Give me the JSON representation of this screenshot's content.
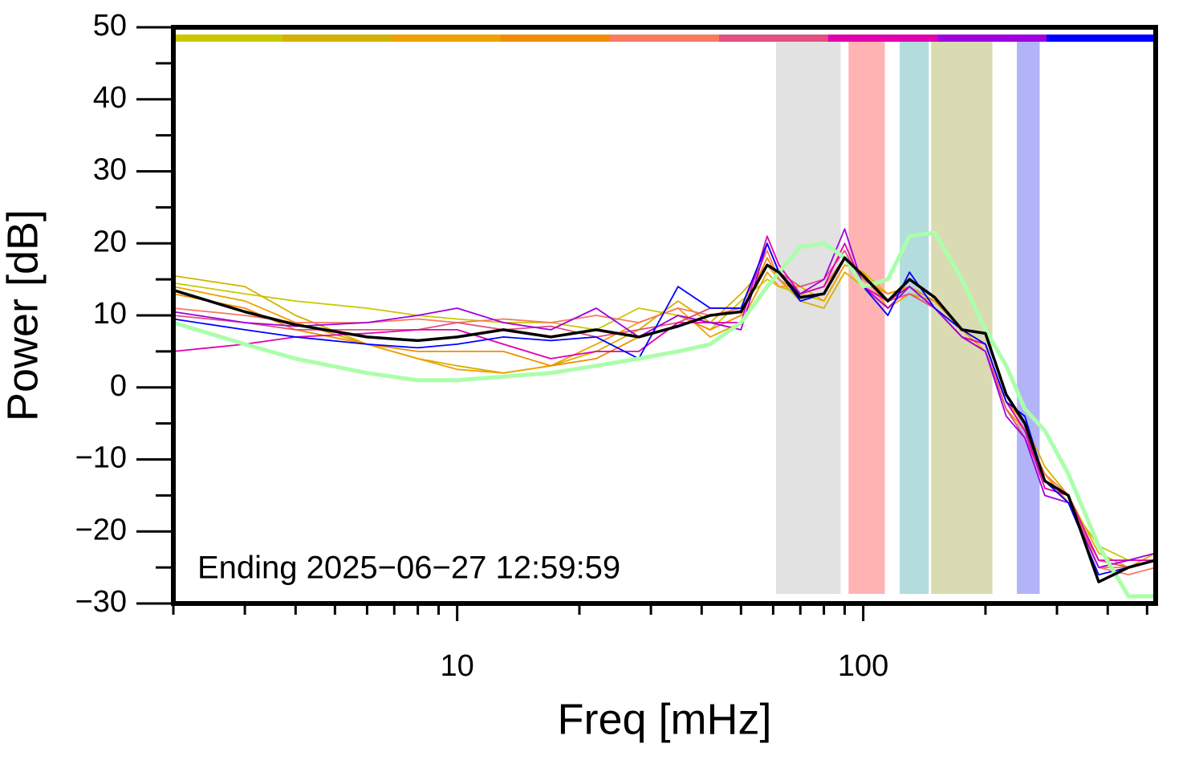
{
  "chart_data": {
    "type": "line",
    "xlabel": "Freq [mHz]",
    "ylabel": "Power [dB]",
    "annotation": "Ending 2025−06−27 12:59:59",
    "xscale": "log",
    "xlim": [
      2,
      525
    ],
    "ylim": [
      -30,
      50
    ],
    "xticks": [
      10,
      100
    ],
    "xminorticks": [
      2,
      3,
      4,
      5,
      6,
      7,
      8,
      9,
      20,
      30,
      40,
      50,
      60,
      70,
      80,
      90,
      200,
      300,
      400,
      500
    ],
    "yticks": [
      {
        "value": -30,
        "label": "−30"
      },
      {
        "value": -20,
        "label": "−20"
      },
      {
        "value": -10,
        "label": "−10"
      },
      0,
      10,
      20,
      30,
      40,
      50
    ],
    "yminorticks": [
      -25,
      -15,
      -5,
      5,
      15,
      25,
      35,
      45
    ],
    "bands": [
      {
        "x": [
          61,
          88
        ],
        "color": "#e2e2e2"
      },
      {
        "x": [
          92,
          113
        ],
        "color": "#ffb3b3"
      },
      {
        "x": [
          123,
          145
        ],
        "color": "#b3dcdc"
      },
      {
        "x": [
          147,
          208
        ],
        "color": "#dadab3"
      },
      {
        "x": [
          239,
          272
        ],
        "color": "#b3b3f8"
      }
    ],
    "x": [
      2,
      3,
      4,
      6,
      8,
      10,
      13,
      17,
      22,
      28,
      35,
      42,
      50,
      58,
      62,
      70,
      80,
      90,
      100,
      115,
      130,
      150,
      175,
      200,
      225,
      250,
      280,
      320,
      380,
      450,
      525
    ],
    "series": [
      {
        "color": "#c8c800",
        "values": [
          14.5,
          13,
          12,
          11,
          10,
          9.5,
          9,
          9,
          8,
          11,
          10,
          8,
          12,
          15,
          14,
          13,
          12,
          17,
          16,
          13,
          14,
          11,
          7,
          5,
          -3,
          -6,
          -12,
          -16,
          -22,
          -24,
          -23
        ]
      },
      {
        "color": "#d4b000",
        "values": [
          15.5,
          14,
          10,
          6,
          4,
          3,
          2,
          3,
          5,
          8,
          12,
          9,
          13,
          17,
          15,
          12,
          11,
          16,
          14,
          12,
          13,
          12,
          8,
          6,
          -2,
          -5,
          -11,
          -15,
          -23,
          -25,
          -24
        ]
      },
      {
        "color": "#f0a000",
        "values": [
          14,
          12,
          9,
          6,
          4,
          2.5,
          2,
          3,
          6,
          9,
          11,
          7,
          9,
          16,
          14,
          14,
          12,
          17,
          16,
          11,
          13,
          11,
          8,
          5,
          -3,
          -6,
          -12,
          -16,
          -24,
          -25,
          -23
        ]
      },
      {
        "color": "#f08c00",
        "values": [
          13,
          11,
          8,
          6,
          5,
          5,
          5,
          3,
          4,
          7,
          10,
          8,
          10,
          18,
          15,
          13,
          14,
          18,
          15,
          13,
          14,
          12,
          8,
          6,
          -2,
          -5,
          -13,
          -16,
          -25,
          -25,
          -24
        ]
      },
      {
        "color": "#f87a60",
        "values": [
          11,
          10,
          9,
          9,
          9.5,
          9,
          9.5,
          9,
          10,
          9,
          11,
          10,
          11,
          19,
          15,
          13,
          14,
          18,
          15,
          12,
          14,
          11,
          7,
          5,
          -2,
          -6,
          -12,
          -15,
          -25,
          -26,
          -25
        ]
      },
      {
        "color": "#e05080",
        "values": [
          10,
          9,
          8,
          8,
          8,
          9,
          8,
          8.5,
          7,
          8,
          9,
          11,
          11,
          20,
          16,
          14,
          15,
          19,
          14,
          12,
          13,
          11,
          7,
          5,
          -3,
          -7,
          -13,
          -16,
          -24,
          -25,
          -24
        ]
      },
      {
        "color": "#e000b0",
        "values": [
          5,
          6,
          7,
          7.5,
          8,
          8,
          6,
          4,
          5,
          5,
          9,
          9,
          9,
          21,
          17,
          13,
          14,
          20,
          14,
          12,
          14,
          11,
          7,
          6,
          -2,
          -6,
          -14,
          -15,
          -24,
          -24,
          -24
        ]
      },
      {
        "color": "#a000e0",
        "values": [
          10.5,
          9,
          8.5,
          9,
          10,
          11,
          9,
          8,
          11,
          7,
          10,
          9,
          8,
          20,
          16,
          13,
          15,
          22,
          14,
          11,
          14,
          11,
          7,
          5,
          -4,
          -7,
          -15,
          -16,
          -25,
          -24,
          -23
        ]
      },
      {
        "color": "#0000ff",
        "values": [
          9.5,
          8,
          7,
          6,
          5.5,
          6,
          7,
          6.5,
          7,
          4,
          14,
          11,
          11,
          20,
          16,
          12,
          13,
          18,
          14,
          10,
          16,
          11,
          8,
          6,
          -2,
          -4,
          -13,
          -16,
          -26,
          -25,
          -24
        ]
      },
      {
        "color": "#aaffaa",
        "width": 5,
        "values": [
          9,
          6,
          4,
          2,
          1,
          1,
          1.5,
          2,
          3,
          4,
          5,
          6,
          9,
          14,
          16,
          19.5,
          20,
          18,
          14,
          15,
          21,
          21.5,
          15,
          8,
          3,
          -3,
          -6,
          -12,
          -22,
          -29,
          -29
        ]
      },
      {
        "color": "#000000",
        "width": 3.5,
        "values": [
          13.5,
          10.5,
          8.7,
          7,
          6.5,
          7,
          8,
          7,
          8,
          7,
          8.5,
          10,
          10.5,
          17,
          16,
          12.5,
          13,
          18,
          15.5,
          12,
          15,
          12.5,
          8,
          7.5,
          -1,
          -5,
          -13,
          -15,
          -27,
          -25,
          -24
        ]
      }
    ]
  }
}
